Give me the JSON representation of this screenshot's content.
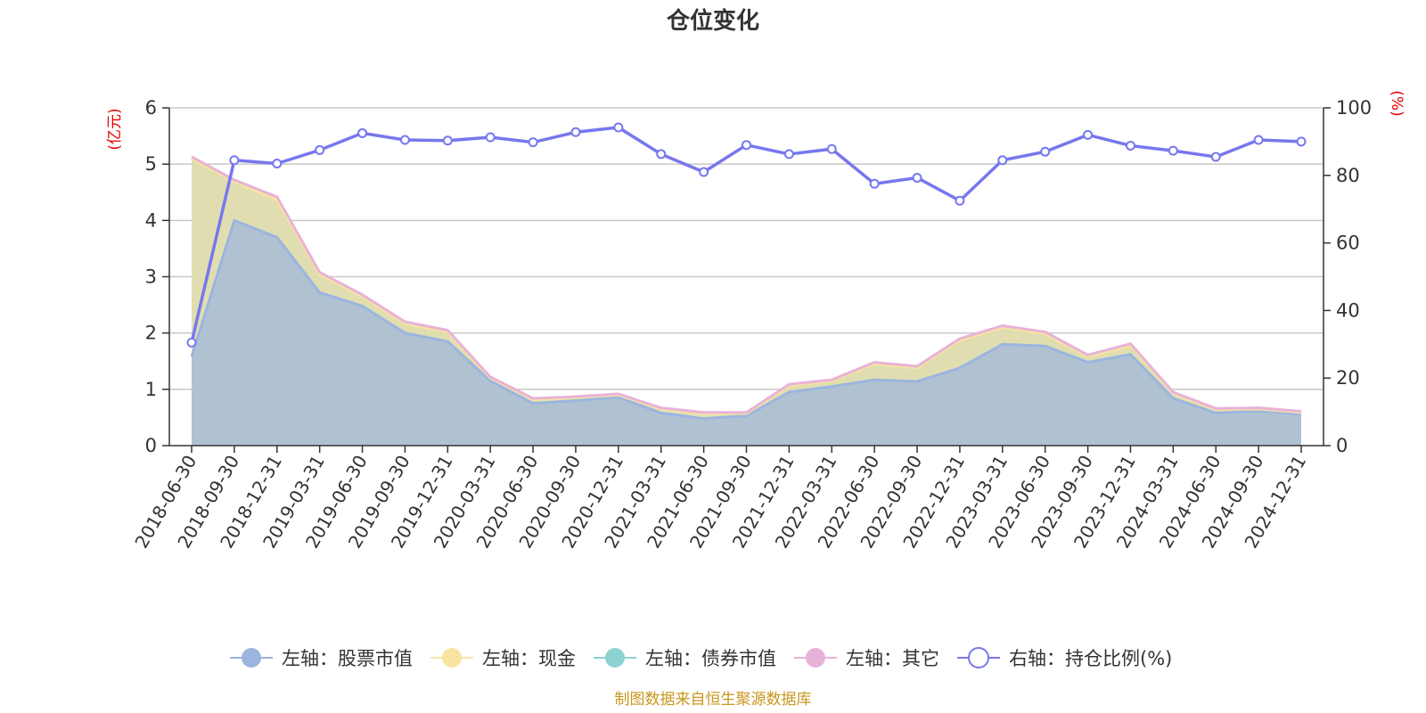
{
  "chart_data": {
    "type": "area",
    "title": "仓位变化",
    "left_unit": "(亿元)",
    "right_unit": "(%)",
    "source": "制图数据来自恒生聚源数据库",
    "categories": [
      "2018-06-30",
      "2018-09-30",
      "2018-12-31",
      "2019-03-31",
      "2019-06-30",
      "2019-09-30",
      "2019-12-31",
      "2020-03-31",
      "2020-06-30",
      "2020-09-30",
      "2020-12-31",
      "2021-03-31",
      "2021-06-30",
      "2021-09-30",
      "2021-12-31",
      "2022-03-31",
      "2022-06-30",
      "2022-09-30",
      "2022-12-31",
      "2023-03-31",
      "2023-06-30",
      "2023-09-30",
      "2023-12-31",
      "2024-03-31",
      "2024-06-30",
      "2024-09-30",
      "2024-12-31"
    ],
    "ylim_left": [
      0,
      6
    ],
    "yticks_left": [
      0,
      1,
      2,
      3,
      4,
      5,
      6
    ],
    "ylim_right": [
      0,
      100
    ],
    "yticks_right": [
      0,
      20,
      40,
      60,
      80,
      100
    ],
    "grid": true,
    "legend_position": "bottom",
    "series": [
      {
        "name": "左轴：股票市值",
        "axis": "left",
        "kind": "stack",
        "color": "#9bb5e0",
        "values": [
          1.58,
          4.0,
          3.7,
          2.72,
          2.48,
          2.0,
          1.85,
          1.15,
          0.75,
          0.8,
          0.86,
          0.58,
          0.48,
          0.53,
          0.95,
          1.05,
          1.17,
          1.14,
          1.38,
          1.8,
          1.77,
          1.48,
          1.62,
          0.84,
          0.58,
          0.62,
          0.56
        ]
      },
      {
        "name": "左轴：现金",
        "axis": "left",
        "kind": "stack",
        "color": "#f7e4a0",
        "values": [
          3.52,
          0.69,
          0.67,
          0.33,
          0.17,
          0.17,
          0.17,
          0.05,
          0.07,
          0.05,
          0.04,
          0.07,
          0.09,
          0.04,
          0.12,
          0.1,
          0.28,
          0.24,
          0.49,
          0.3,
          0.22,
          0.1,
          0.16,
          0.09,
          0.06,
          0.03,
          0.03
        ]
      },
      {
        "name": "左轴：债券市值",
        "axis": "left",
        "kind": "stack",
        "color": "#8ed1d2",
        "values": [
          0,
          0,
          0,
          0,
          0,
          0,
          0,
          0,
          0,
          0,
          0,
          0,
          0,
          0,
          0,
          0,
          0,
          0,
          0,
          0,
          0,
          0,
          0,
          0,
          0,
          0,
          0
        ]
      },
      {
        "name": "左轴：其它",
        "axis": "left",
        "kind": "stack",
        "color": "#e8b2d8",
        "values": [
          0.03,
          0.03,
          0.05,
          0.03,
          0.03,
          0.03,
          0.03,
          0.02,
          0.02,
          0.02,
          0.02,
          0.02,
          0.02,
          0.02,
          0.02,
          0.02,
          0.03,
          0.03,
          0.03,
          0.03,
          0.03,
          0.03,
          0.03,
          0.02,
          0.02,
          0.02,
          0.02
        ]
      },
      {
        "name": "右轴：持仓比例(%)",
        "axis": "right",
        "kind": "line",
        "color": "#7777ee",
        "values": [
          30.5,
          84.5,
          83.5,
          87.5,
          92.5,
          90.5,
          90.3,
          91.3,
          89.8,
          92.8,
          94.2,
          86.3,
          81.0,
          89.0,
          86.3,
          87.8,
          77.5,
          79.3,
          72.5,
          84.5,
          87.0,
          92.0,
          88.8,
          87.3,
          85.5,
          90.5,
          90.0
        ]
      }
    ]
  }
}
